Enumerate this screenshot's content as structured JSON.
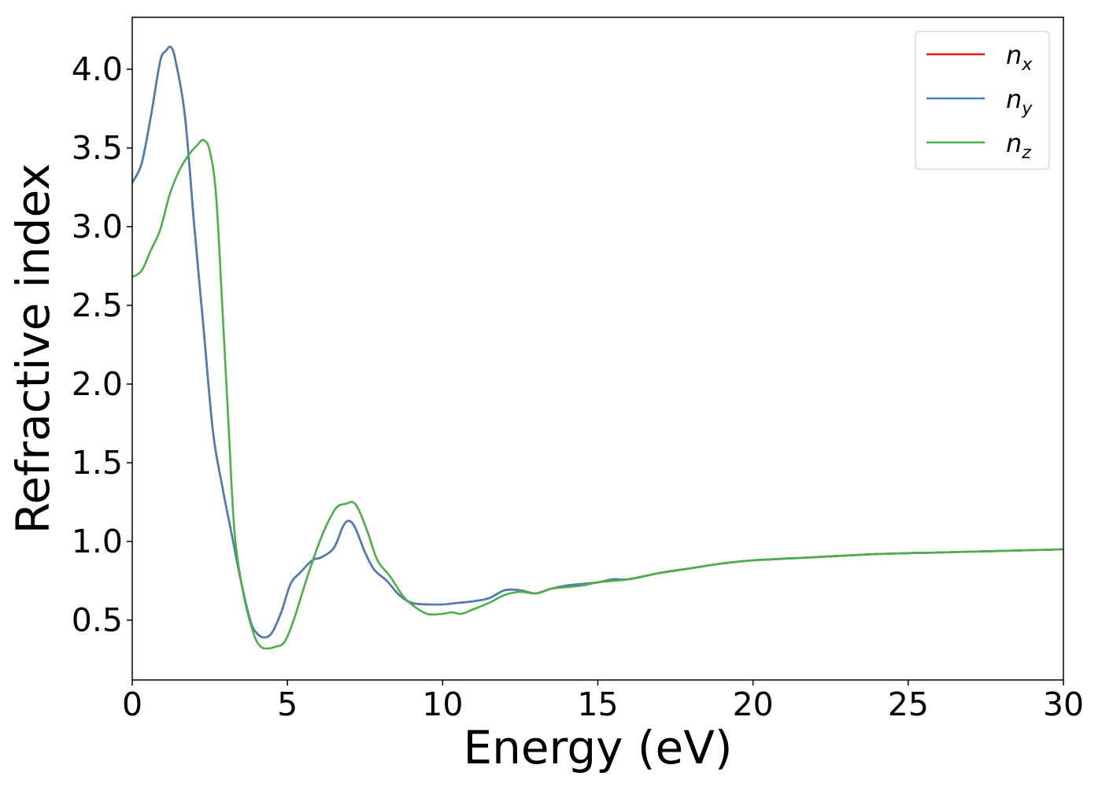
{
  "chart_data": {
    "type": "line",
    "xlabel": "Energy (eV)",
    "ylabel": "Refractive index",
    "xlim": [
      0,
      30
    ],
    "ylim": [
      0.12,
      4.33
    ],
    "xticks": [
      0,
      5,
      10,
      15,
      20,
      25,
      30
    ],
    "xtick_labels": [
      "0",
      "5",
      "10",
      "15",
      "20",
      "25",
      "30"
    ],
    "yticks": [
      0.5,
      1.0,
      1.5,
      2.0,
      2.5,
      3.0,
      3.5,
      4.0
    ],
    "ytick_labels": [
      "0.5",
      "1.0",
      "1.5",
      "2.0",
      "2.5",
      "3.0",
      "3.5",
      "4.0"
    ],
    "grid": false,
    "legend_position": "top-right",
    "series": [
      {
        "name_base": "n",
        "name_sub": "x",
        "color": "#e41a1c",
        "x": [
          0,
          0.3,
          0.6,
          0.9,
          1.1,
          1.25,
          1.4,
          1.7,
          2.0,
          2.3,
          2.6,
          2.9,
          3.2,
          3.5,
          3.8,
          4.0,
          4.25,
          4.5,
          4.8,
          5.1,
          5.4,
          5.8,
          6.1,
          6.5,
          6.8,
          7.0,
          7.2,
          7.5,
          7.8,
          8.2,
          8.6,
          9.0,
          9.5,
          10.0,
          10.5,
          11.0,
          11.5,
          12.0,
          12.5,
          13.0,
          13.5,
          14.0,
          14.5,
          15.0,
          15.5,
          16.0,
          17.0,
          18.0,
          19.0,
          20.0,
          22.0,
          24.0,
          26.0,
          28.0,
          30.0
        ],
        "values": [
          3.28,
          3.4,
          3.7,
          4.05,
          4.12,
          4.14,
          4.05,
          3.7,
          3.0,
          2.35,
          1.7,
          1.35,
          1.05,
          0.75,
          0.5,
          0.42,
          0.39,
          0.42,
          0.55,
          0.73,
          0.8,
          0.88,
          0.9,
          0.96,
          1.1,
          1.13,
          1.08,
          0.93,
          0.82,
          0.75,
          0.66,
          0.61,
          0.6,
          0.6,
          0.61,
          0.62,
          0.64,
          0.69,
          0.69,
          0.67,
          0.7,
          0.72,
          0.73,
          0.74,
          0.76,
          0.76,
          0.8,
          0.83,
          0.86,
          0.88,
          0.9,
          0.92,
          0.93,
          0.94,
          0.95
        ]
      },
      {
        "name_base": "n",
        "name_sub": "y",
        "color": "#4a7fb5",
        "x": [
          0,
          0.3,
          0.6,
          0.9,
          1.1,
          1.25,
          1.4,
          1.7,
          2.0,
          2.3,
          2.6,
          2.9,
          3.2,
          3.5,
          3.8,
          4.0,
          4.25,
          4.5,
          4.8,
          5.1,
          5.4,
          5.8,
          6.1,
          6.5,
          6.8,
          7.0,
          7.2,
          7.5,
          7.8,
          8.2,
          8.6,
          9.0,
          9.5,
          10.0,
          10.5,
          11.0,
          11.5,
          12.0,
          12.5,
          13.0,
          13.5,
          14.0,
          14.5,
          15.0,
          15.5,
          16.0,
          17.0,
          18.0,
          19.0,
          20.0,
          22.0,
          24.0,
          26.0,
          28.0,
          30.0
        ],
        "values": [
          3.28,
          3.4,
          3.7,
          4.05,
          4.12,
          4.14,
          4.05,
          3.7,
          3.0,
          2.35,
          1.7,
          1.35,
          1.05,
          0.75,
          0.5,
          0.42,
          0.39,
          0.42,
          0.55,
          0.73,
          0.8,
          0.88,
          0.9,
          0.96,
          1.1,
          1.13,
          1.08,
          0.93,
          0.82,
          0.75,
          0.66,
          0.61,
          0.6,
          0.6,
          0.61,
          0.62,
          0.64,
          0.69,
          0.69,
          0.67,
          0.7,
          0.72,
          0.73,
          0.74,
          0.76,
          0.76,
          0.8,
          0.83,
          0.86,
          0.88,
          0.9,
          0.92,
          0.93,
          0.94,
          0.95
        ]
      },
      {
        "name_base": "n",
        "name_sub": "z",
        "color": "#4daf4a",
        "x": [
          0,
          0.3,
          0.6,
          0.9,
          1.2,
          1.5,
          1.8,
          2.1,
          2.3,
          2.5,
          2.7,
          2.9,
          3.1,
          3.3,
          3.6,
          3.9,
          4.1,
          4.3,
          4.6,
          4.9,
          5.2,
          5.6,
          6.0,
          6.3,
          6.6,
          6.9,
          7.1,
          7.3,
          7.6,
          7.9,
          8.3,
          8.7,
          9.0,
          9.5,
          10.0,
          10.3,
          10.6,
          11.0,
          11.5,
          12.0,
          12.5,
          13.0,
          13.5,
          14.0,
          14.5,
          15.0,
          15.5,
          16.0,
          17.0,
          18.0,
          19.0,
          20.0,
          22.0,
          24.0,
          26.0,
          28.0,
          30.0
        ],
        "values": [
          2.68,
          2.72,
          2.85,
          2.98,
          3.2,
          3.35,
          3.45,
          3.52,
          3.55,
          3.48,
          3.2,
          2.5,
          1.75,
          1.05,
          0.65,
          0.42,
          0.34,
          0.32,
          0.33,
          0.36,
          0.5,
          0.75,
          0.98,
          1.12,
          1.22,
          1.24,
          1.25,
          1.2,
          1.05,
          0.88,
          0.78,
          0.66,
          0.6,
          0.54,
          0.54,
          0.55,
          0.54,
          0.57,
          0.61,
          0.66,
          0.68,
          0.67,
          0.7,
          0.71,
          0.72,
          0.74,
          0.75,
          0.76,
          0.8,
          0.83,
          0.86,
          0.88,
          0.9,
          0.92,
          0.93,
          0.94,
          0.95
        ]
      }
    ]
  }
}
